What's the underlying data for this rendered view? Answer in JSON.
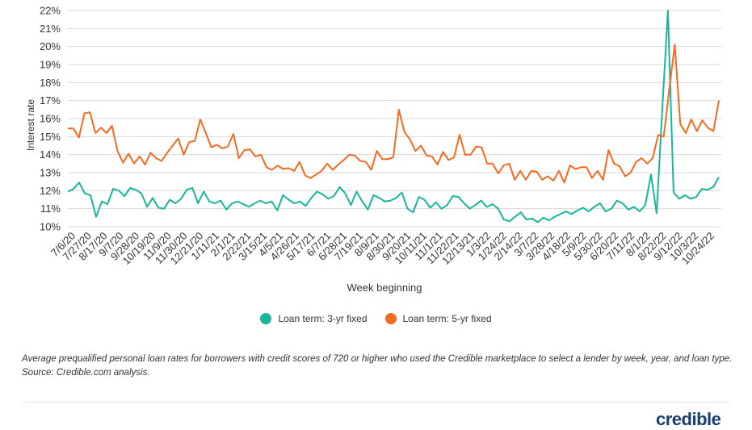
{
  "chart_data": {
    "type": "line",
    "xlabel": "Week beginning",
    "ylabel": "Interest rate",
    "ylim": [
      10,
      22
    ],
    "y_ticks": [
      "10%",
      "11%",
      "12%",
      "13%",
      "14%",
      "15%",
      "16%",
      "17%",
      "18%",
      "19%",
      "20%",
      "21%",
      "22%"
    ],
    "x_tick_labels": [
      "7/6/20",
      "7/27/20",
      "8/17/20",
      "9/7/20",
      "9/28/20",
      "10/19/20",
      "11/9/20",
      "11/30/20",
      "12/21/20",
      "1/11/21",
      "2/1/21",
      "2/22/21",
      "3/15/21",
      "4/5/21",
      "4/26/21",
      "5/17/21",
      "6/7/21",
      "6/28/21",
      "7/19/21",
      "8/9/21",
      "8/30/21",
      "9/20/21",
      "10/11/21",
      "11/1/21",
      "11/22/21",
      "12/13/21",
      "1/3/22",
      "1/24/22",
      "2/14/22",
      "3/7/22",
      "3/28/22",
      "4/18/22",
      "5/9/22",
      "5/30/22",
      "6/20/22",
      "7/11/22",
      "8/1/22",
      "8/22/22",
      "9/12/22",
      "10/3/22",
      "10/24/22"
    ],
    "grid": true,
    "legend_position": "bottom",
    "series": [
      {
        "name": "Loan term: 3-yr fixed",
        "color": "#1ab59a",
        "values": [
          11.95,
          12.1,
          12.45,
          11.85,
          11.75,
          10.55,
          11.4,
          11.25,
          12.1,
          12.0,
          11.7,
          12.15,
          12.05,
          11.85,
          11.1,
          11.6,
          11.05,
          11.0,
          11.5,
          11.3,
          11.55,
          12.05,
          12.15,
          11.3,
          11.95,
          11.4,
          11.3,
          11.45,
          10.95,
          11.3,
          11.4,
          11.25,
          11.1,
          11.3,
          11.45,
          11.3,
          11.4,
          10.9,
          11.75,
          11.5,
          11.3,
          11.4,
          11.15,
          11.6,
          11.95,
          11.8,
          11.55,
          11.7,
          12.2,
          11.85,
          11.2,
          11.95,
          11.4,
          10.95,
          11.75,
          11.6,
          11.4,
          11.45,
          11.6,
          11.9,
          11.0,
          10.8,
          11.65,
          11.5,
          11.05,
          11.35,
          11.0,
          11.2,
          11.7,
          11.65,
          11.3,
          11.0,
          11.2,
          11.45,
          11.1,
          11.25,
          11.0,
          10.4,
          10.3,
          10.55,
          10.8,
          10.4,
          10.45,
          10.25,
          10.5,
          10.35,
          10.55,
          10.7,
          10.85,
          10.7,
          10.9,
          11.05,
          10.85,
          11.1,
          11.3,
          10.85,
          11.0,
          11.45,
          11.3,
          10.95,
          11.1,
          10.85,
          11.2,
          12.9,
          10.75,
          16.5,
          22.0,
          11.9,
          11.55,
          11.75,
          11.55,
          11.65,
          12.1,
          12.05,
          12.2,
          12.75
        ]
      },
      {
        "name": "Loan term: 5-yr fixed",
        "color": "#f26b21",
        "values": [
          15.45,
          15.45,
          14.95,
          16.3,
          16.35,
          15.2,
          15.5,
          15.2,
          15.6,
          14.2,
          13.55,
          14.05,
          13.5,
          13.9,
          13.45,
          14.1,
          13.8,
          13.65,
          14.1,
          14.5,
          14.9,
          14.0,
          14.7,
          14.75,
          15.95,
          15.2,
          14.4,
          14.55,
          14.35,
          14.45,
          15.15,
          13.8,
          14.25,
          14.3,
          13.9,
          14.0,
          13.3,
          13.15,
          13.4,
          13.2,
          13.25,
          13.1,
          13.6,
          12.85,
          12.7,
          12.9,
          13.1,
          13.5,
          13.15,
          13.45,
          13.7,
          14.0,
          13.95,
          13.65,
          13.6,
          13.15,
          14.2,
          13.75,
          13.75,
          13.85,
          16.5,
          15.25,
          14.85,
          14.2,
          14.5,
          13.95,
          13.9,
          13.45,
          14.15,
          13.7,
          13.85,
          15.1,
          14.0,
          14.0,
          14.45,
          14.4,
          13.5,
          13.5,
          12.95,
          13.4,
          13.5,
          12.6,
          13.1,
          12.6,
          13.1,
          13.05,
          12.6,
          12.8,
          12.55,
          13.1,
          12.45,
          13.4,
          13.2,
          13.3,
          13.3,
          12.7,
          13.1,
          12.6,
          14.25,
          13.5,
          13.35,
          12.8,
          13.0,
          13.6,
          13.8,
          13.5,
          13.8,
          15.1,
          15.0,
          17.6,
          20.1,
          15.7,
          15.2,
          15.95,
          15.3,
          15.9,
          15.5,
          15.3,
          17.0
        ]
      }
    ]
  },
  "legend": {
    "series_1_label": "Loan term: 3-yr fixed",
    "series_2_label": "Loan term: 5-yr fixed",
    "series_1_color": "#1ab59a",
    "series_2_color": "#f26b21"
  },
  "caption": "Average prequalified personal loan rates for borrowers with credit scores of 720 or higher who used the Credible marketplace to select a lender by week, year, and loan type. Source: Credible.com analysis.",
  "brand": "credible"
}
